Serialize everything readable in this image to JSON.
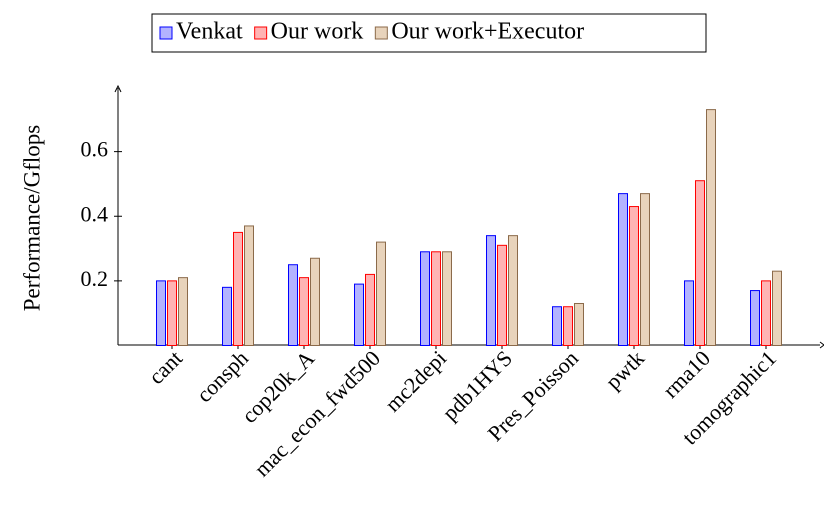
{
  "chart_data": {
    "type": "bar",
    "ylabel": "Performance/Gflops",
    "categories": [
      "cant",
      "consph",
      "cop20k_A",
      "mac_econ_fwd500",
      "mc2depi",
      "pdb1HYS",
      "Pres_Poisson",
      "pwtk",
      "rma10",
      "tomographic1"
    ],
    "series": [
      {
        "name": "Venkat",
        "color": "#b3b3ff",
        "edge": "#0000ff",
        "values": [
          0.2,
          0.18,
          0.25,
          0.19,
          0.29,
          0.34,
          0.12,
          0.47,
          0.2,
          0.17
        ]
      },
      {
        "name": "Our work",
        "color": "#ffb3b3",
        "edge": "#ff0000",
        "values": [
          0.2,
          0.35,
          0.21,
          0.22,
          0.29,
          0.31,
          0.12,
          0.43,
          0.51,
          0.2
        ]
      },
      {
        "name": "Our work+Executor",
        "color": "#e8d3bb",
        "edge": "#8b6a4a",
        "values": [
          0.21,
          0.37,
          0.27,
          0.32,
          0.29,
          0.34,
          0.13,
          0.47,
          0.73,
          0.23
        ]
      }
    ],
    "ylim": [
      0,
      0.8
    ],
    "yticks": [
      0.2,
      0.4,
      0.6
    ],
    "legend": "top"
  }
}
